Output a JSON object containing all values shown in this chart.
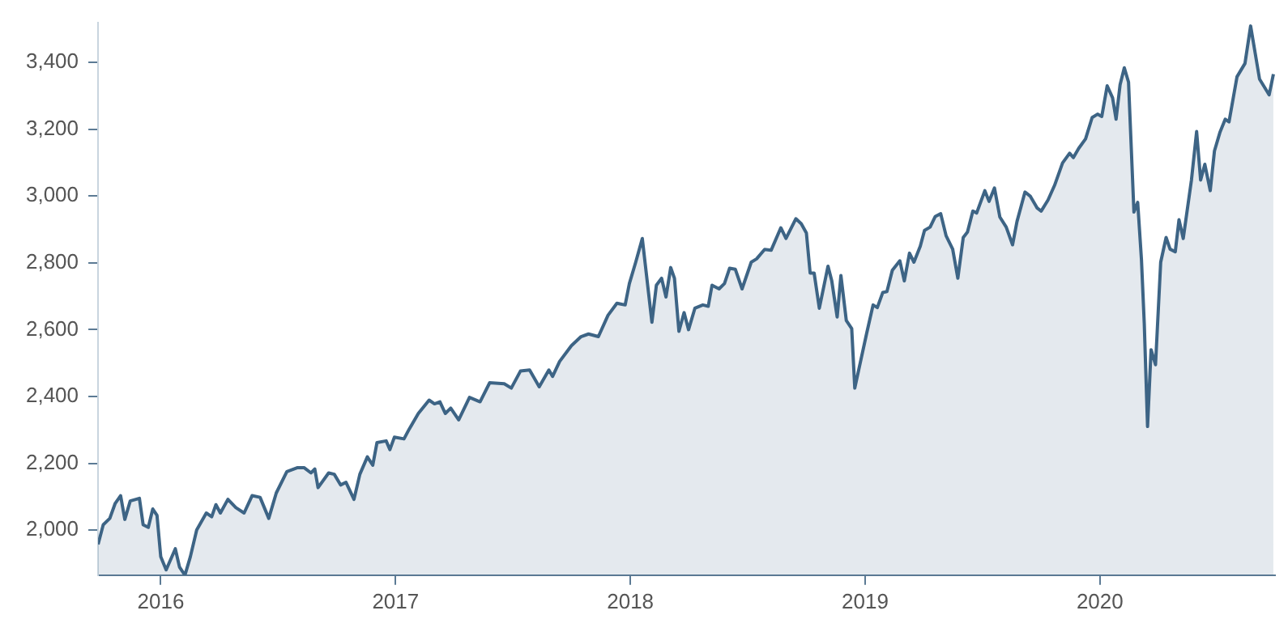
{
  "chart_data": {
    "type": "area",
    "x": [
      2015.733,
      2015.755,
      2015.783,
      2015.806,
      2015.829,
      2015.847,
      2015.87,
      2015.909,
      2015.925,
      2015.947,
      2015.966,
      2015.984,
      2016.0,
      2016.023,
      2016.062,
      2016.08,
      2016.103,
      2016.126,
      2016.153,
      2016.194,
      2016.217,
      2016.235,
      2016.254,
      2016.286,
      2016.32,
      2016.355,
      2016.389,
      2016.423,
      2016.46,
      2016.492,
      2016.537,
      2016.583,
      2016.61,
      2016.64,
      2016.656,
      2016.67,
      2016.715,
      2016.739,
      2016.766,
      2016.789,
      2016.823,
      2016.848,
      2016.88,
      2016.903,
      2016.921,
      2016.96,
      2016.976,
      2016.995,
      2017.036,
      2017.058,
      2017.097,
      2017.143,
      2017.166,
      2017.189,
      2017.212,
      2017.235,
      2017.269,
      2017.315,
      2017.36,
      2017.401,
      2017.463,
      2017.493,
      2017.532,
      2017.571,
      2017.612,
      2017.653,
      2017.669,
      2017.699,
      2017.749,
      2017.79,
      2017.822,
      2017.864,
      2017.905,
      2017.943,
      2017.978,
      2017.996,
      2018.023,
      2018.051,
      2018.092,
      2018.111,
      2018.133,
      2018.152,
      2018.172,
      2018.188,
      2018.207,
      2018.229,
      2018.248,
      2018.275,
      2018.309,
      2018.332,
      2018.348,
      2018.378,
      2018.401,
      2018.423,
      2018.447,
      2018.476,
      2018.515,
      2018.538,
      2018.572,
      2018.6,
      2018.641,
      2018.663,
      2018.705,
      2018.728,
      2018.75,
      2018.766,
      2018.783,
      2018.805,
      2018.842,
      2018.858,
      2018.881,
      2018.897,
      2018.92,
      2018.943,
      2018.956,
      2018.984,
      2019.006,
      2019.034,
      2019.052,
      2019.075,
      2019.093,
      2019.116,
      2019.148,
      2019.167,
      2019.189,
      2019.208,
      2019.235,
      2019.253,
      2019.277,
      2019.299,
      2019.322,
      2019.345,
      2019.373,
      2019.395,
      2019.418,
      2019.436,
      2019.459,
      2019.475,
      2019.51,
      2019.528,
      2019.551,
      2019.574,
      2019.601,
      2019.628,
      2019.647,
      2019.681,
      2019.704,
      2019.733,
      2019.75,
      2019.779,
      2019.807,
      2019.841,
      2019.871,
      2019.887,
      2019.91,
      2019.939,
      2019.967,
      2019.99,
      2020.008,
      2020.031,
      2020.054,
      2020.069,
      2020.086,
      2020.104,
      2020.122,
      2020.145,
      2020.161,
      2020.177,
      2020.189,
      2020.203,
      2020.218,
      2020.237,
      2020.259,
      2020.282,
      2020.299,
      2020.321,
      2020.337,
      2020.355,
      2020.39,
      2020.412,
      2020.429,
      2020.447,
      2020.47,
      2020.488,
      2020.511,
      2020.534,
      2020.55,
      2020.584,
      2020.618,
      2020.642,
      2020.68,
      2020.721,
      2020.739
    ],
    "series": [
      {
        "color": "#3d6485",
        "values": [
          1957,
          2016,
          2035,
          2080,
          2103,
          2032,
          2087,
          2095,
          2016,
          2008,
          2063,
          2044,
          1920,
          1881,
          1944,
          1889,
          1865,
          1920,
          2000,
          2051,
          2040,
          2076,
          2051,
          2092,
          2067,
          2051,
          2103,
          2098,
          2035,
          2111,
          2175,
          2187,
          2187,
          2171,
          2183,
          2127,
          2171,
          2167,
          2135,
          2143,
          2092,
          2167,
          2219,
          2194,
          2262,
          2267,
          2241,
          2278,
          2273,
          2302,
          2349,
          2389,
          2378,
          2384,
          2349,
          2365,
          2330,
          2397,
          2384,
          2441,
          2438,
          2425,
          2476,
          2479,
          2429,
          2479,
          2460,
          2505,
          2552,
          2579,
          2587,
          2579,
          2643,
          2679,
          2674,
          2738,
          2802,
          2873,
          2622,
          2733,
          2754,
          2698,
          2786,
          2754,
          2595,
          2651,
          2600,
          2664,
          2674,
          2670,
          2733,
          2722,
          2738,
          2784,
          2781,
          2722,
          2802,
          2812,
          2840,
          2838,
          2905,
          2873,
          2932,
          2917,
          2889,
          2769,
          2769,
          2664,
          2790,
          2746,
          2638,
          2762,
          2627,
          2603,
          2425,
          2516,
          2587,
          2674,
          2666,
          2711,
          2714,
          2778,
          2806,
          2746,
          2829,
          2802,
          2850,
          2897,
          2907,
          2939,
          2947,
          2881,
          2841,
          2754,
          2876,
          2892,
          2955,
          2949,
          3016,
          2984,
          3024,
          2937,
          2907,
          2854,
          2924,
          3012,
          2999,
          2964,
          2955,
          2988,
          3032,
          3099,
          3128,
          3115,
          3143,
          3171,
          3235,
          3245,
          3238,
          3330,
          3294,
          3230,
          3333,
          3384,
          3341,
          2952,
          2981,
          2810,
          2619,
          2310,
          2540,
          2495,
          2802,
          2876,
          2841,
          2833,
          2929,
          2873,
          3048,
          3193,
          3048,
          3095,
          3016,
          3135,
          3190,
          3230,
          3222,
          3357,
          3397,
          3509,
          3350,
          3303,
          3365
        ]
      }
    ],
    "xlim": [
      2015.733,
      2020.746
    ],
    "xticks": [
      2016,
      2017,
      2018,
      2019,
      2020
    ],
    "ylim": [
      1865,
      3520
    ],
    "yticks": [
      {
        "value": 2000,
        "label": "2,000"
      },
      {
        "value": 2200,
        "label": "2,200"
      },
      {
        "value": 2400,
        "label": "2,400"
      },
      {
        "value": 2600,
        "label": "2,600"
      },
      {
        "value": 2800,
        "label": "2,800"
      },
      {
        "value": 3000,
        "label": "3,000"
      },
      {
        "value": 3200,
        "label": "3,200"
      },
      {
        "value": 3400,
        "label": "3,400"
      }
    ],
    "grid": false,
    "legend": false
  }
}
